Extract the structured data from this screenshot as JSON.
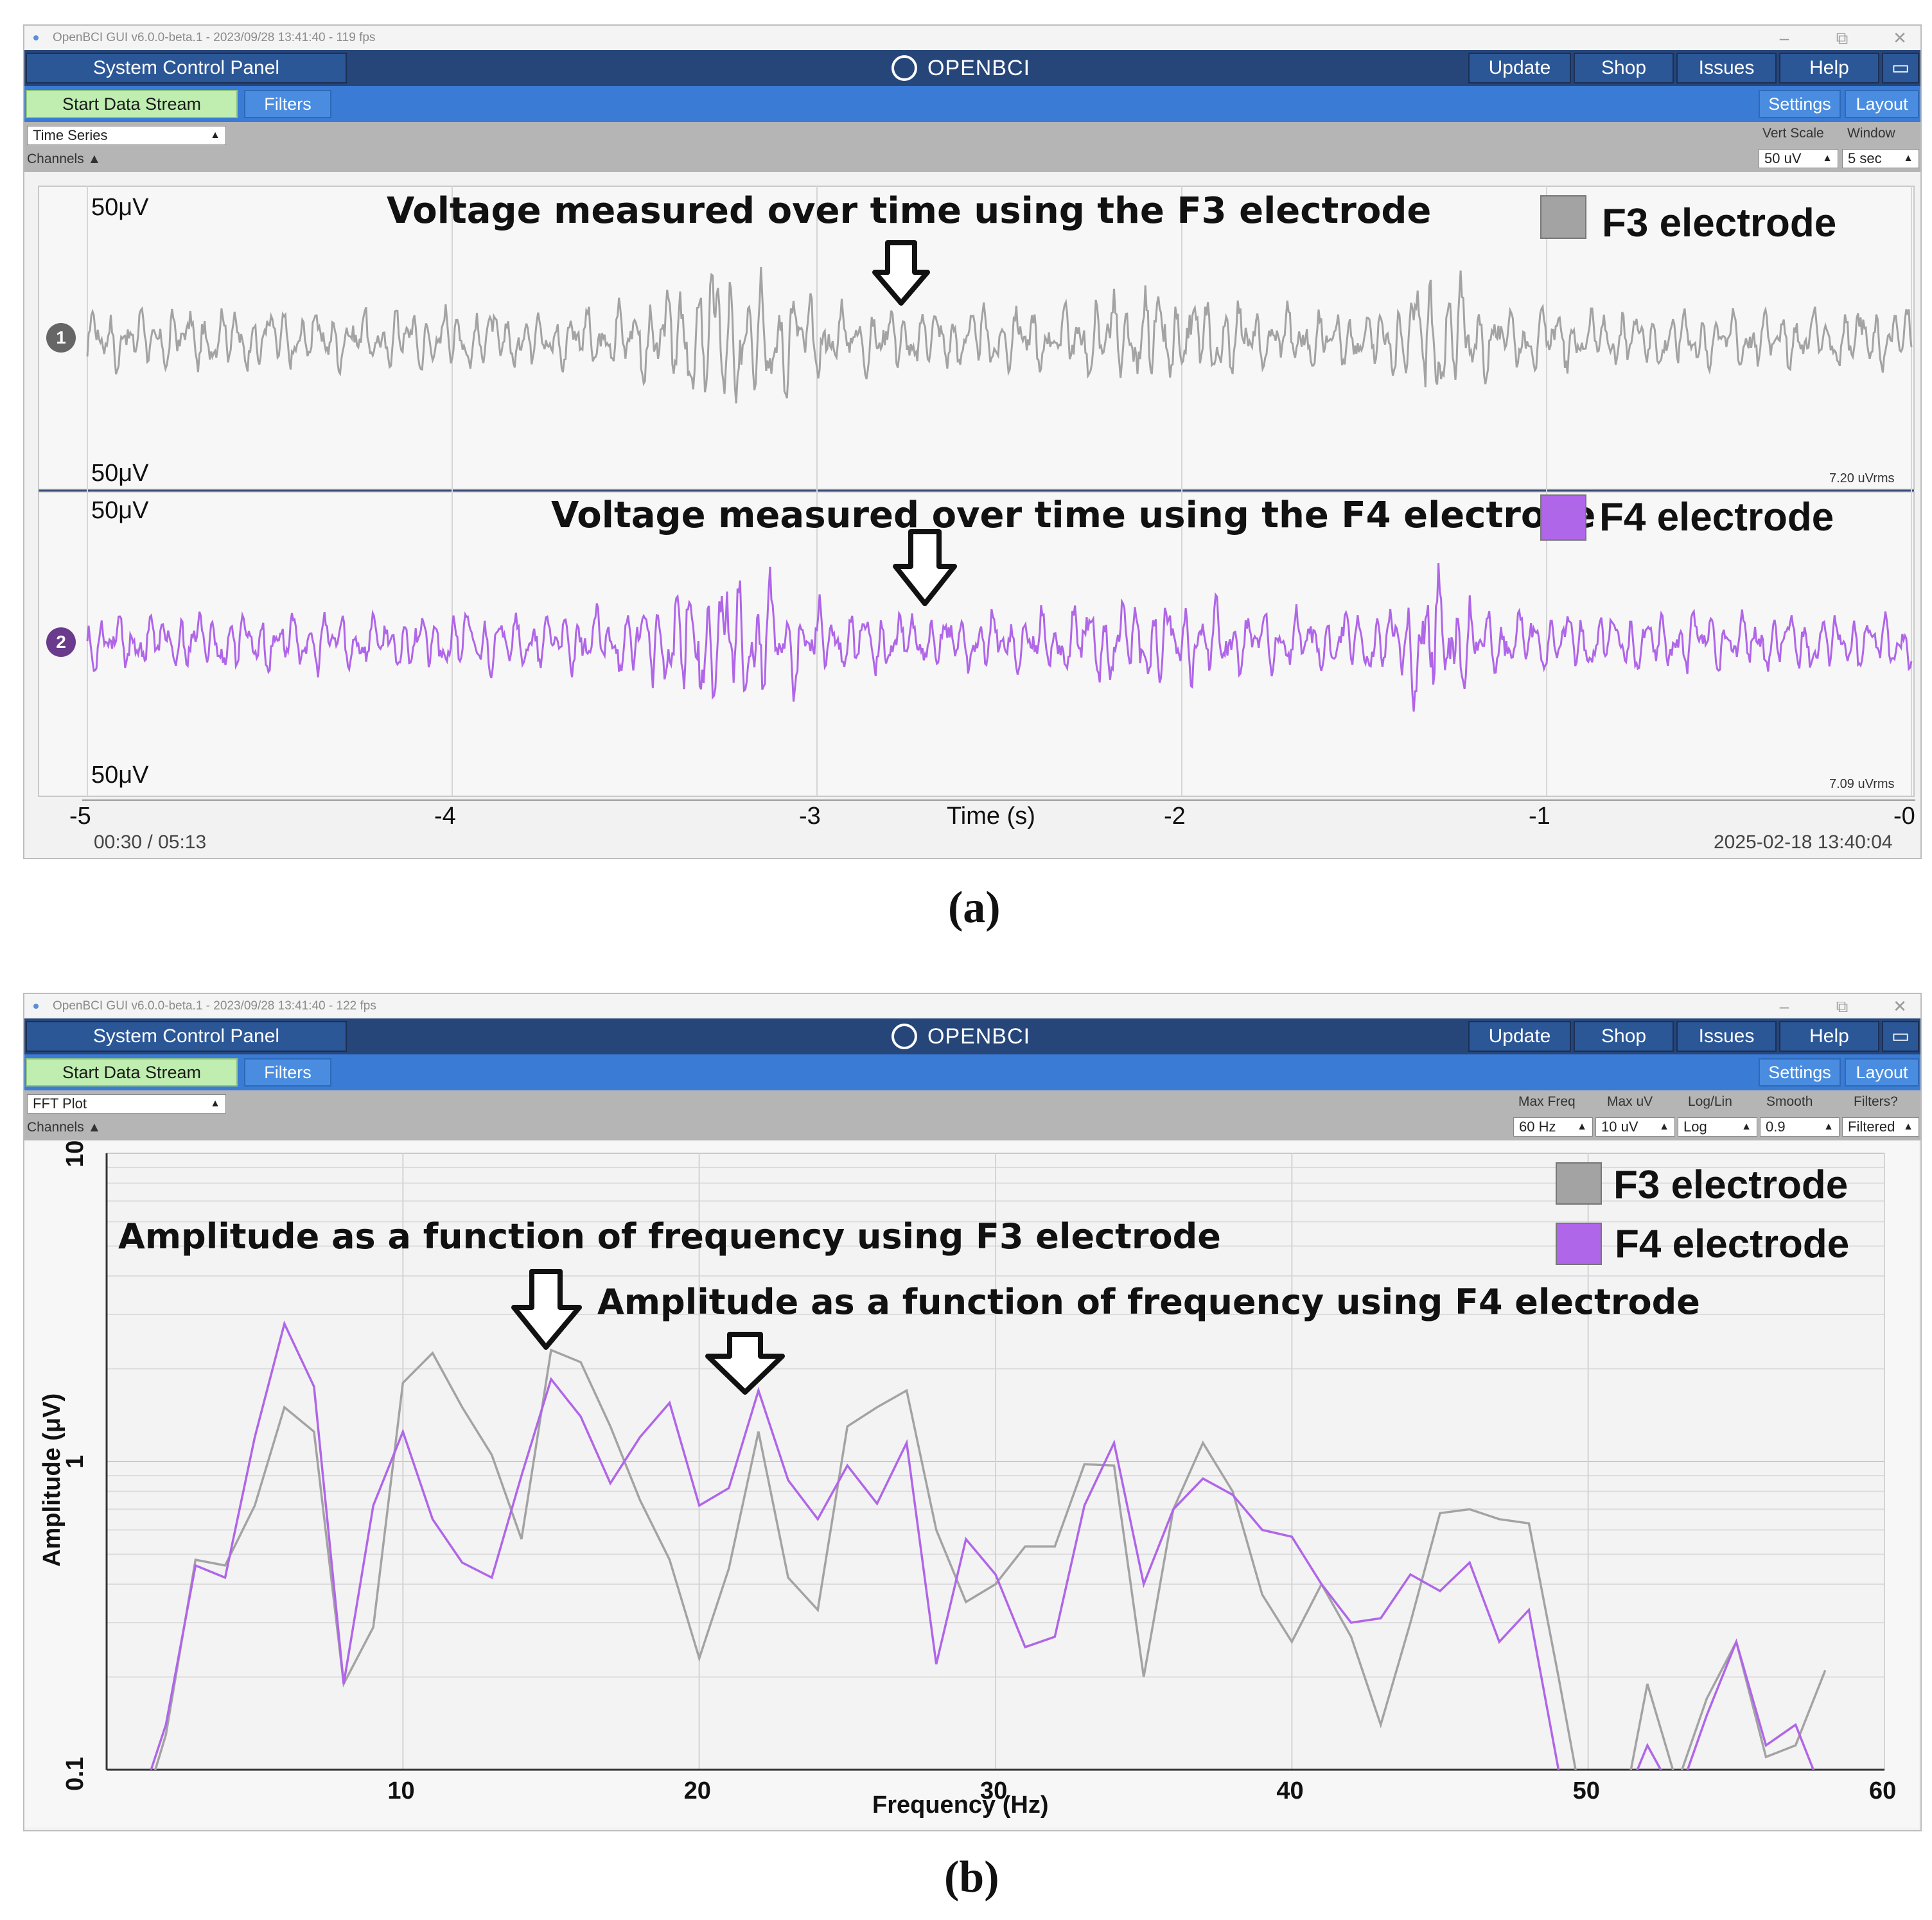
{
  "window_a": {
    "titlebar": "OpenBCI GUI v6.0.0-beta.1 - 2023/09/28 13:41:40 - 119 fps",
    "window_controls": {
      "minimize": "–",
      "restore": "⧉",
      "close": "✕"
    },
    "system_control_panel": "System Control Panel",
    "logo": "OPENBCI",
    "nav": {
      "update": "Update",
      "shop": "Shop",
      "issues": "Issues",
      "help": "Help"
    },
    "maximize_icon": "window-icon",
    "start_data_stream": "Start Data Stream",
    "filters": "Filters",
    "settings": "Settings",
    "layout": "Layout",
    "widget_select": "Time Series",
    "channels": "Channels ▲",
    "vert_scale_label": "Vert Scale",
    "vert_scale_value": "50 uV",
    "window_label": "Window",
    "window_value": "5 sec",
    "channel1": {
      "badge": "1",
      "top_label": "50μV",
      "bottom_label": "50μV",
      "rms": "7.20 uVrms",
      "annotation": "Voltage measured over time using the F3 electrode",
      "legend": "F3 electrode",
      "color": "#a3a3a3"
    },
    "channel2": {
      "badge": "2",
      "top_label": "50μV",
      "bottom_label": "50μV",
      "rms": "7.09 uVrms",
      "annotation": "Voltage measured over time using the F4 electrode",
      "legend": "F4 electrode",
      "color": "#b066e8",
      "badge_color": "#6a3a8c"
    },
    "x_ticks": [
      "-5",
      "-4",
      "-3",
      "-2",
      "-1",
      "-0"
    ],
    "x_label": "Time (s)",
    "playback": "00:30 / 05:13",
    "timestamp": "2025-02-18 13:40:04"
  },
  "caption_a": "(a)",
  "window_b": {
    "titlebar": "OpenBCI GUI v6.0.0-beta.1 - 2023/09/28 13:41:40 - 122 fps",
    "window_controls": {
      "minimize": "–",
      "restore": "⧉",
      "close": "✕"
    },
    "system_control_panel": "System Control Panel",
    "logo": "OPENBCI",
    "nav": {
      "update": "Update",
      "shop": "Shop",
      "issues": "Issues",
      "help": "Help"
    },
    "start_data_stream": "Start Data Stream",
    "filters": "Filters",
    "settings": "Settings",
    "layout": "Layout",
    "widget_select": "FFT Plot",
    "channels": "Channels ▲",
    "controls": [
      {
        "label": "Max Freq",
        "value": "60 Hz"
      },
      {
        "label": "Max uV",
        "value": "10 uV"
      },
      {
        "label": "Log/Lin",
        "value": "Log"
      },
      {
        "label": "Smooth",
        "value": "0.9"
      },
      {
        "label": "Filters?",
        "value": "Filtered"
      }
    ],
    "annotation_f3": "Amplitude as a function of frequency using F3 electrode",
    "annotation_f4": "Amplitude as a function of frequency using F4 electrode",
    "legend_f3": "F3 electrode",
    "legend_f4": "F4 electrode"
  },
  "caption_b": "(b)",
  "chart_data": [
    {
      "type": "line",
      "panel": "a",
      "title": "",
      "xlabel": "Time (s)",
      "ylabel": "",
      "xlim": [
        -5,
        0
      ],
      "x_ticks": [
        -5,
        -4,
        -3,
        -2,
        -1,
        0
      ],
      "series": [
        {
          "name": "F3 electrode",
          "color": "#a3a3a3",
          "rms": "7.20 uVrms"
        },
        {
          "name": "F4 electrode",
          "color": "#b066e8",
          "rms": "7.09 uVrms"
        }
      ],
      "note_values": "continuous EEG traces; amplitude scale ±50 μV"
    },
    {
      "type": "line",
      "panel": "b",
      "title": "",
      "xlabel": "Frequency (Hz)",
      "ylabel": "Amplitude (μV)",
      "xlim": [
        0,
        60
      ],
      "ylim": [
        0.1,
        10
      ],
      "yscale": "log",
      "x_ticks": [
        10,
        20,
        30,
        40,
        50,
        60
      ],
      "y_ticks": [
        0.1,
        1,
        10
      ],
      "grid": true,
      "legend": "top-right",
      "series": [
        {
          "name": "F3 electrode",
          "color": "#a3a3a3",
          "x": [
            1.5,
            2,
            3,
            4,
            5,
            6,
            7,
            8,
            9,
            10,
            11,
            12,
            13,
            14,
            15,
            16,
            17,
            18,
            19,
            20,
            21,
            22,
            23,
            24,
            25,
            26,
            27,
            28,
            29,
            30,
            31,
            32,
            33,
            34,
            35,
            36,
            37,
            38,
            39,
            40,
            41,
            42,
            43,
            44,
            45,
            46,
            47,
            48,
            49,
            50,
            51,
            52,
            53,
            54,
            55,
            56,
            57,
            58
          ],
          "y": [
            0.09,
            0.13,
            0.48,
            0.46,
            0.72,
            1.5,
            1.25,
            0.19,
            0.29,
            1.8,
            2.25,
            1.5,
            1.05,
            0.56,
            2.3,
            2.1,
            1.3,
            0.75,
            0.48,
            0.23,
            0.45,
            1.25,
            0.42,
            0.33,
            1.3,
            1.5,
            1.7,
            0.6,
            0.35,
            0.4,
            0.53,
            0.53,
            0.98,
            0.97,
            0.2,
            0.7,
            1.15,
            0.8,
            0.37,
            0.26,
            0.4,
            0.27,
            0.14,
            0.3,
            0.68,
            0.7,
            0.65,
            0.63,
            0.2,
            0.06,
            0.06,
            0.19,
            0.09,
            0.17,
            0.26,
            0.11,
            0.12,
            0.21
          ]
        },
        {
          "name": "F4 electrode",
          "color": "#b066e8",
          "x": [
            1.5,
            2,
            3,
            4,
            5,
            6,
            7,
            8,
            9,
            10,
            11,
            12,
            13,
            14,
            15,
            16,
            17,
            18,
            19,
            20,
            21,
            22,
            23,
            24,
            25,
            26,
            27,
            28,
            29,
            30,
            31,
            32,
            33,
            34,
            35,
            36,
            37,
            38,
            39,
            40,
            41,
            42,
            43,
            44,
            45,
            46,
            47,
            48,
            49,
            50,
            51,
            52,
            53,
            54,
            55,
            56,
            57,
            58
          ],
          "y": [
            0.1,
            0.14,
            0.46,
            0.42,
            1.2,
            2.8,
            1.75,
            0.19,
            0.72,
            1.25,
            0.65,
            0.47,
            0.42,
            0.9,
            1.85,
            1.4,
            0.85,
            1.2,
            1.55,
            0.72,
            0.82,
            1.7,
            0.87,
            0.65,
            0.97,
            0.73,
            1.15,
            0.22,
            0.56,
            0.43,
            0.25,
            0.27,
            0.72,
            1.15,
            0.4,
            0.7,
            0.88,
            0.78,
            0.6,
            0.57,
            0.4,
            0.3,
            0.31,
            0.43,
            0.38,
            0.47,
            0.26,
            0.33,
            0.1,
            0.06,
            0.07,
            0.12,
            0.08,
            0.15,
            0.26,
            0.12,
            0.14,
            0.08
          ]
        }
      ]
    }
  ]
}
